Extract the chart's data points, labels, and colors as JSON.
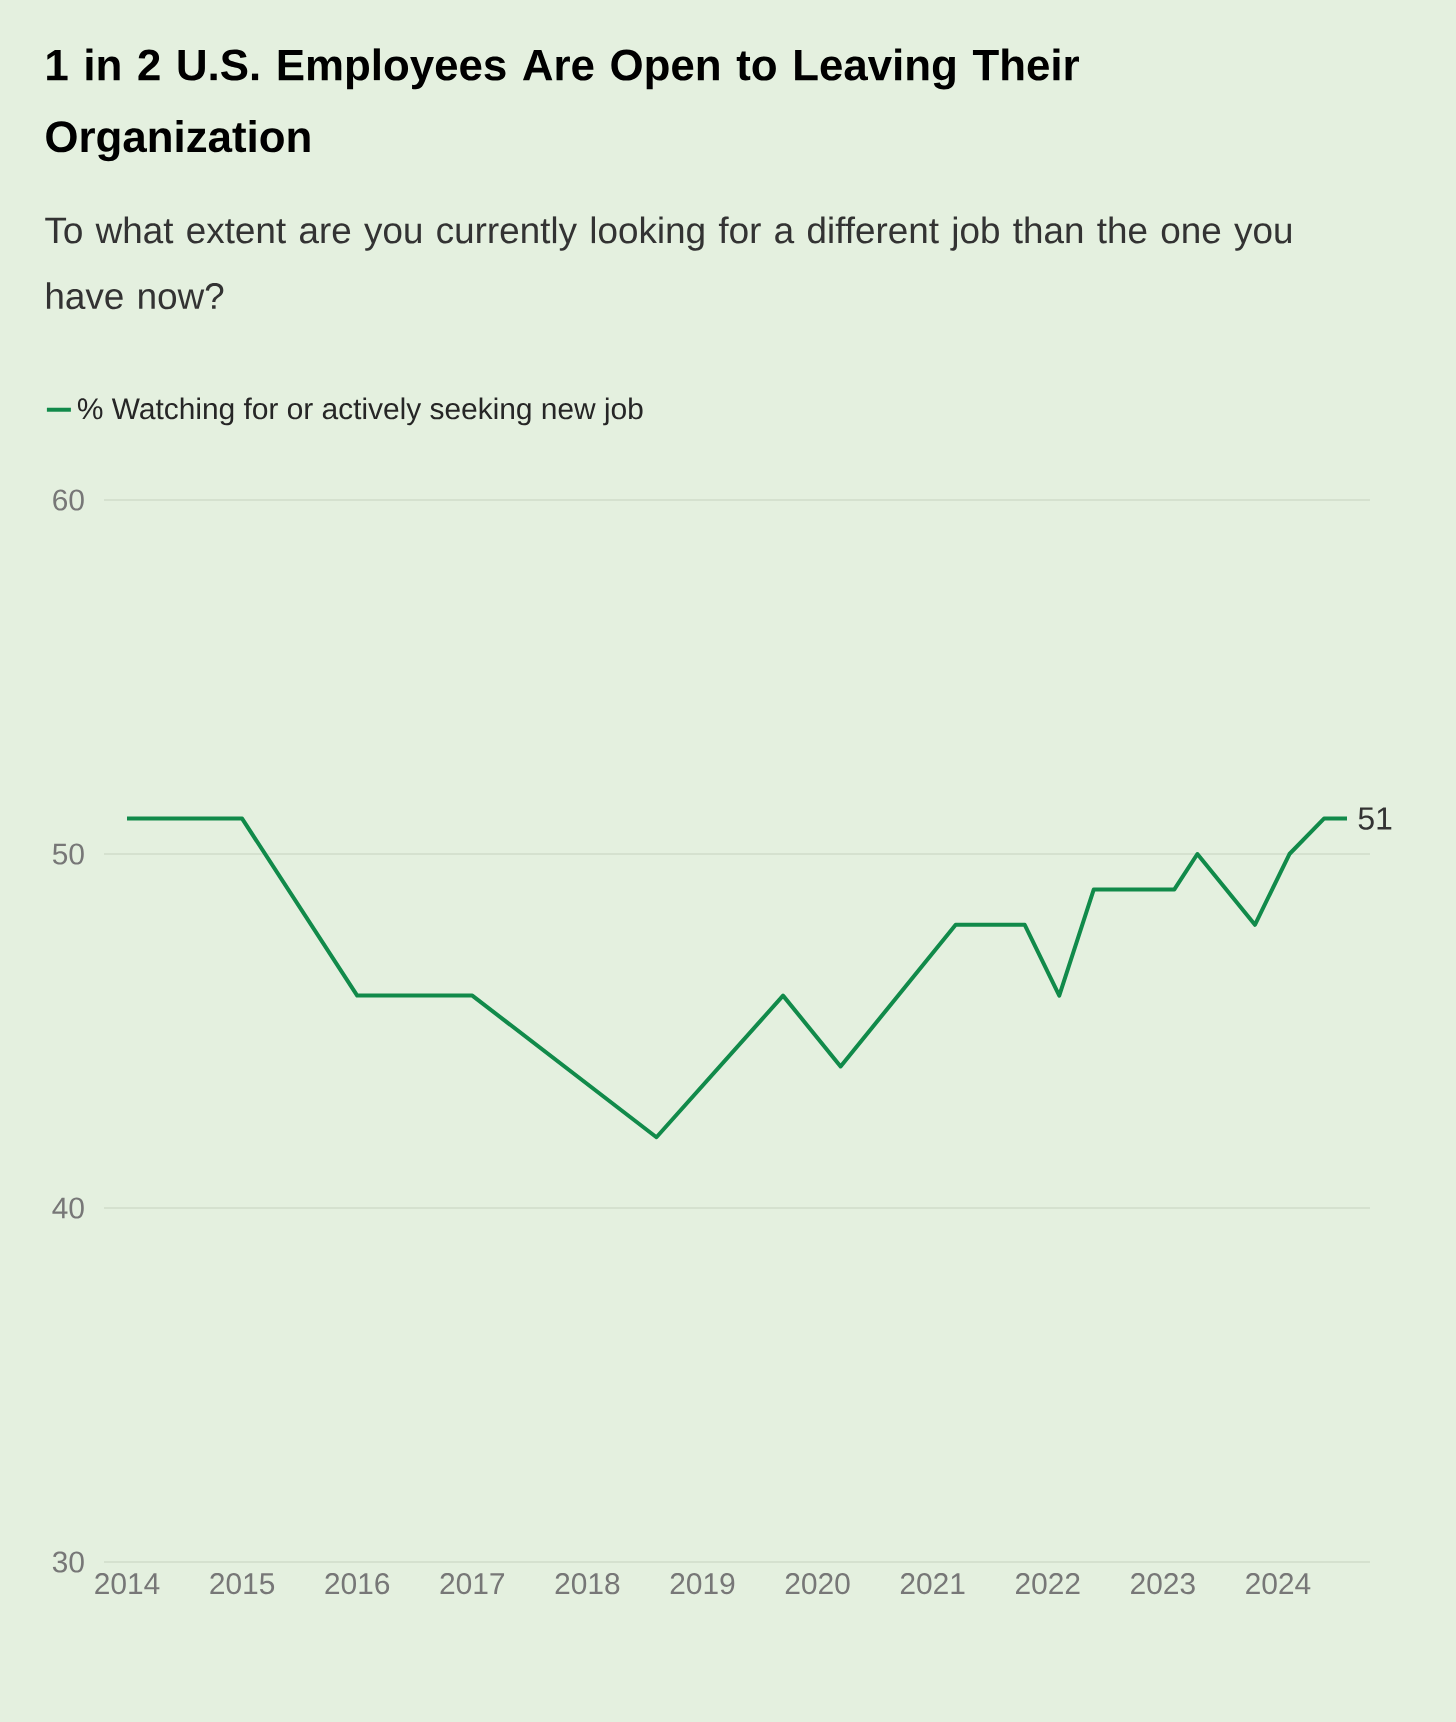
{
  "chart_data": {
    "type": "line",
    "title": "1 in 2 U.S. Employees Are Open to Leaving Their Organization",
    "subtitle": "To what extent are you currently looking for a different job than the one you have now?",
    "x": [
      2014,
      2015,
      2016,
      2017,
      2018.6,
      2019.7,
      2020.2,
      2021.2,
      2021.8,
      2022.1,
      2022.4,
      2023.1,
      2023.3,
      2023.8,
      2024.1,
      2024.4,
      2024.6
    ],
    "series": [
      {
        "name": "% Watching for or actively seeking new job",
        "color": "#118a4a",
        "values": [
          51,
          51,
          46,
          46,
          42,
          46,
          44,
          48,
          48,
          46,
          49,
          49,
          50,
          48,
          50,
          51,
          51
        ],
        "value_labels": [
          null,
          null,
          null,
          null,
          null,
          null,
          null,
          null,
          null,
          null,
          null,
          null,
          null,
          null,
          null,
          null,
          "51"
        ]
      }
    ],
    "xlim": [
      2013.8,
      2024.8
    ],
    "xticks": [
      2014,
      2015,
      2016,
      2017,
      2018,
      2019,
      2020,
      2021,
      2022,
      2023,
      2024
    ],
    "ylim": [
      30,
      60
    ],
    "yticks": [
      30,
      40,
      50,
      60
    ],
    "grid": "y",
    "legend": "top left",
    "marker": "none",
    "line_style": "solid"
  }
}
